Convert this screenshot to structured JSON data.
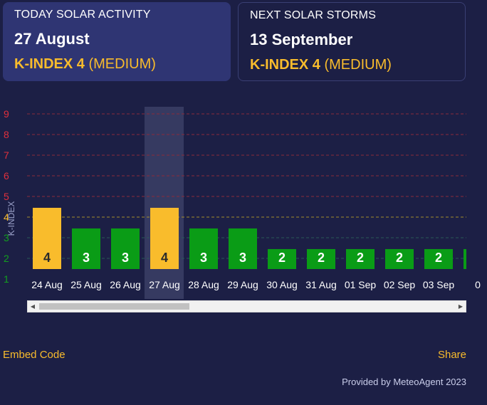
{
  "today": {
    "label": "TODAY SOLAR ACTIVITY",
    "date": "27 August",
    "kindex": "K-INDEX 4",
    "level": "(MEDIUM)"
  },
  "next": {
    "label": "NEXT SOLAR STORMS",
    "date": "13 September",
    "kindex": "K-INDEX 4",
    "level": "(MEDIUM)"
  },
  "chart_data": {
    "type": "bar",
    "ylabel": "K-INDEX",
    "ylim": [
      1,
      9
    ],
    "yticks": [
      9,
      8,
      7,
      6,
      5,
      4,
      3,
      2,
      1
    ],
    "categories": [
      "24 Aug",
      "25 Aug",
      "26 Aug",
      "27 Aug",
      "28 Aug",
      "29 Aug",
      "30 Aug",
      "31 Aug",
      "01 Sep",
      "02 Sep",
      "03 Sep",
      "0"
    ],
    "values": [
      4,
      3,
      3,
      4,
      3,
      3,
      2,
      2,
      2,
      2,
      2,
      2
    ],
    "highlight_index": 3,
    "colors": {
      "medium": "#f9bc2c",
      "low": "#0a9c16",
      "grid_red": "#8a2b3a",
      "grid_yellow": "#a58d2b",
      "grid_green": "#2a5a56",
      "tick_red": "#e0303c",
      "tick_yellow": "#f9bc2c",
      "tick_green": "#12a01e"
    }
  },
  "links": {
    "embed": "Embed Code",
    "share": "Share"
  },
  "footer": "Provided by MeteoAgent 2023"
}
